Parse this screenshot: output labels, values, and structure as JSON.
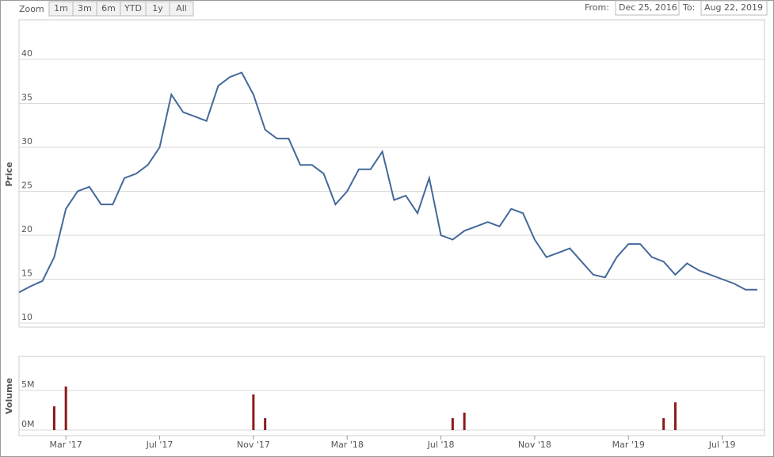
{
  "range_selector": {
    "label": "Zoom",
    "buttons": [
      "1m",
      "3m",
      "6m",
      "YTD",
      "1y",
      "All"
    ]
  },
  "date_range": {
    "from_label": "From:",
    "from": "Dec 25, 2016",
    "to_label": "To:",
    "to": "Aug 22, 2019"
  },
  "chart_data": [
    {
      "type": "line",
      "y_label": "Price",
      "color": "#44699a",
      "grid": true,
      "ylim": [
        10,
        44.5
      ],
      "yticks": [
        10,
        15,
        20,
        25,
        30,
        35,
        40
      ],
      "values": [
        13.5,
        14.2,
        14.8,
        17.5,
        23,
        25,
        25.5,
        23.5,
        23.5,
        26.5,
        27,
        28,
        30,
        36,
        34,
        33.5,
        33,
        37,
        38,
        38.5,
        36,
        32,
        31,
        31,
        28,
        28,
        27,
        23.5,
        25,
        27.5,
        27.5,
        29.5,
        24,
        24.5,
        22.5,
        26.5,
        20,
        19.5,
        20.5,
        21,
        21.5,
        21,
        23,
        22.5,
        19.5,
        17.5,
        18,
        18.5,
        17,
        15.5,
        15.2,
        17.5,
        19,
        19,
        17.5,
        17,
        15.5,
        16.8,
        16,
        15.5,
        15,
        14.5,
        13.8,
        13.8
      ]
    },
    {
      "type": "bar",
      "y_label": "Volume",
      "color": "#8b1a1a",
      "grid": true,
      "ylim": [
        -700000,
        9300000
      ],
      "yticks": [
        {
          "value": 0,
          "label": "0M"
        },
        {
          "value": 5000000,
          "label": "5M"
        }
      ],
      "categories": [
        null,
        null,
        null,
        null,
        "Mar '17",
        null,
        null,
        null,
        null,
        null,
        null,
        null,
        "Jul '17",
        null,
        null,
        null,
        null,
        null,
        null,
        null,
        "Nov '17",
        null,
        null,
        null,
        null,
        null,
        null,
        null,
        "Mar '18",
        null,
        null,
        null,
        null,
        null,
        null,
        null,
        "Jul '18",
        null,
        null,
        null,
        null,
        null,
        null,
        null,
        "Nov '18",
        null,
        null,
        null,
        null,
        null,
        null,
        null,
        "Mar '19",
        null,
        null,
        null,
        null,
        null,
        null,
        null,
        "Jul '19",
        null,
        null,
        null
      ],
      "values": [
        0,
        0,
        0,
        3000000,
        5500000,
        0,
        0,
        0,
        0,
        0,
        0,
        0,
        0,
        0,
        0,
        0,
        0,
        0,
        0,
        0,
        4500000,
        1500000,
        0,
        0,
        0,
        0,
        0,
        0,
        0,
        0,
        0,
        0,
        0,
        0,
        0,
        0,
        0,
        1500000,
        2200000,
        0,
        0,
        0,
        0,
        0,
        0,
        0,
        0,
        0,
        0,
        0,
        0,
        0,
        0,
        0,
        0,
        1500000,
        3500000,
        0,
        0,
        0,
        0,
        0,
        0,
        0
      ]
    }
  ]
}
